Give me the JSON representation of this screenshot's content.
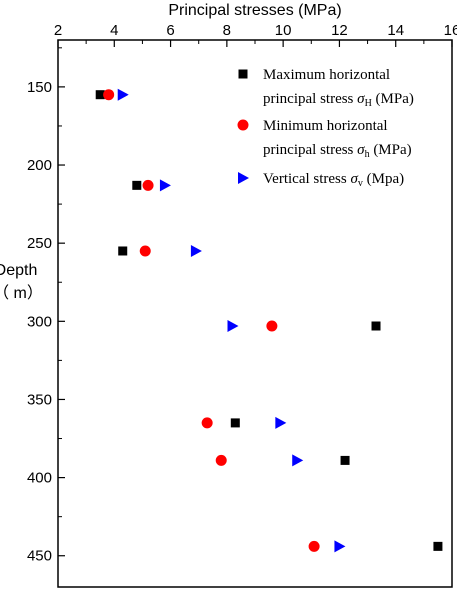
{
  "chart_data": {
    "type": "scatter",
    "title": "",
    "xlabel": "Principal stresses (MPa)",
    "ylabel_line1": "Depth",
    "ylabel_line2": "（ m）",
    "x_axis_position": "top",
    "y_axis_inverted": true,
    "xlim": [
      2,
      16
    ],
    "ylim": [
      120,
      470
    ],
    "xticks": [
      2,
      4,
      6,
      8,
      10,
      12,
      14,
      16
    ],
    "yticks": [
      150,
      200,
      250,
      300,
      350,
      400,
      450
    ],
    "grid": false,
    "legend_position": "top-right",
    "series": [
      {
        "name": "Maximum horizontal principal stress σH (MPa)",
        "marker": "square",
        "color": "#000000",
        "points": [
          {
            "x": 3.5,
            "y": 155
          },
          {
            "x": 4.8,
            "y": 213
          },
          {
            "x": 4.3,
            "y": 255
          },
          {
            "x": 13.3,
            "y": 303
          },
          {
            "x": 8.3,
            "y": 365
          },
          {
            "x": 12.2,
            "y": 389
          },
          {
            "x": 15.5,
            "y": 444
          }
        ]
      },
      {
        "name": "Minimum horizontal principal stress σh (MPa)",
        "marker": "circle",
        "color": "#ff0000",
        "points": [
          {
            "x": 3.8,
            "y": 155
          },
          {
            "x": 5.2,
            "y": 213
          },
          {
            "x": 5.1,
            "y": 255
          },
          {
            "x": 9.6,
            "y": 303
          },
          {
            "x": 7.3,
            "y": 365
          },
          {
            "x": 7.8,
            "y": 389
          },
          {
            "x": 11.1,
            "y": 444
          }
        ]
      },
      {
        "name": "Vertical stress σv (Mpa)",
        "marker": "triangle-right",
        "color": "#0000ff",
        "points": [
          {
            "x": 4.3,
            "y": 155
          },
          {
            "x": 5.8,
            "y": 213
          },
          {
            "x": 6.9,
            "y": 255
          },
          {
            "x": 8.2,
            "y": 303
          },
          {
            "x": 9.9,
            "y": 365
          },
          {
            "x": 10.5,
            "y": 389
          },
          {
            "x": 12.0,
            "y": 444
          }
        ]
      }
    ],
    "legend": [
      {
        "marker": "square",
        "color": "#000000",
        "line1": "Maximum horizontal",
        "line2": "principal stress ",
        "sym": "σ",
        "sub": "H",
        "unit": " (MPa)"
      },
      {
        "marker": "circle",
        "color": "#ff0000",
        "line1": "Minimum horizontal",
        "line2": "principal stress ",
        "sym": "σ",
        "sub": "h",
        "unit": " (MPa)"
      },
      {
        "marker": "triangle-right",
        "color": "#0000ff",
        "line1": "Vertical stress ",
        "sym": "σ",
        "sub": "v",
        "unit": " (Mpa)"
      }
    ]
  }
}
